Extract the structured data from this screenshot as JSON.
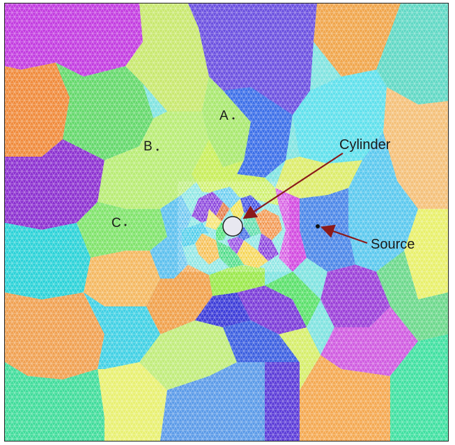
{
  "figure": {
    "point_labels": [
      "A",
      "B",
      "C"
    ],
    "callouts": {
      "cylinder": "Cylinder",
      "source": "Source"
    },
    "colors": {
      "arrow": "#8b1a1a",
      "cylinder_fill": "#e8e8f0",
      "source_marker": "#111111"
    }
  }
}
